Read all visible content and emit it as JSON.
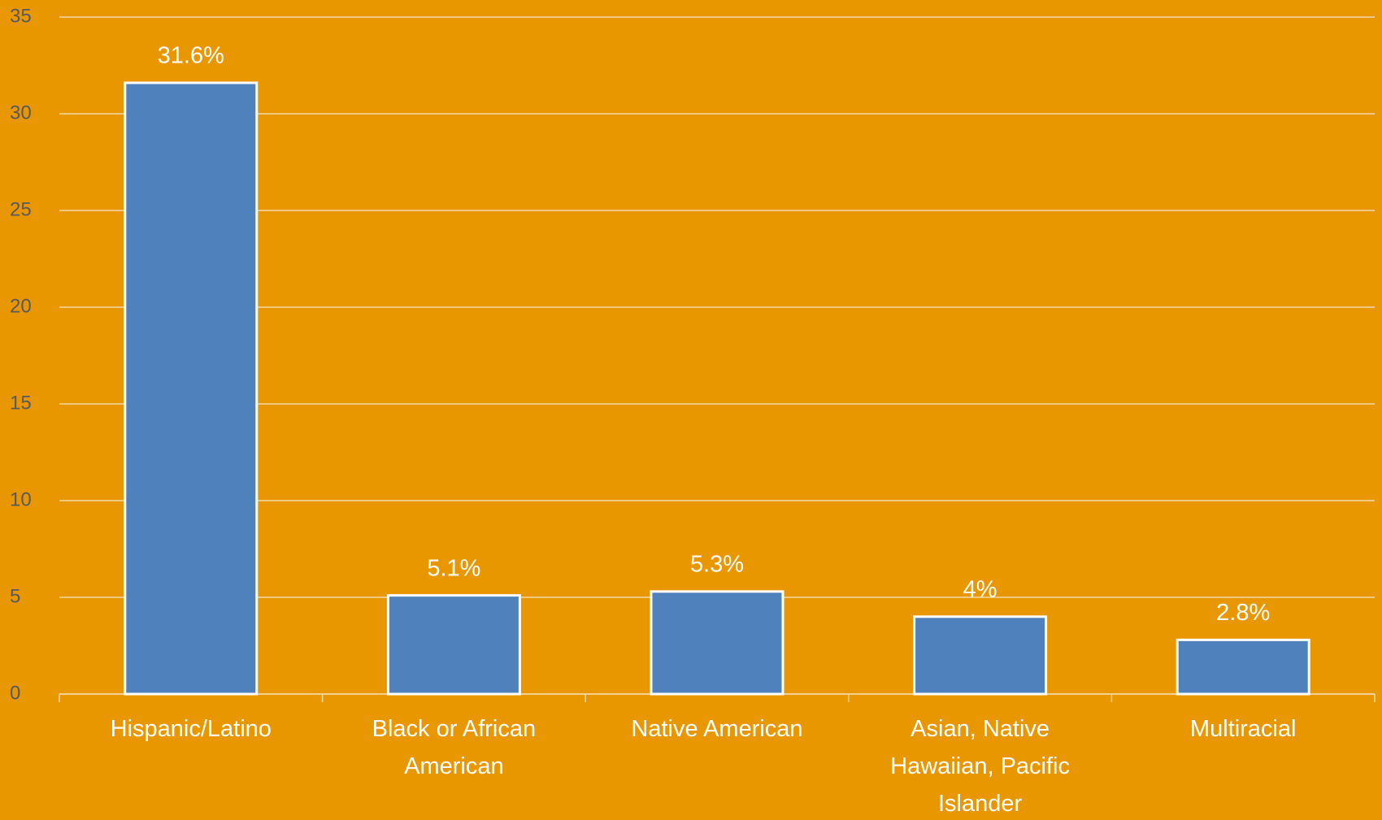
{
  "chart_data": {
    "type": "bar",
    "categories": [
      "Hispanic/Latino",
      "Black or African American",
      "Native American",
      "Asian, Native Hawaiian, Pacific Islander",
      "Multiracial"
    ],
    "values": [
      31.6,
      5.1,
      5.3,
      4,
      2.8
    ],
    "value_labels": [
      "31.6%",
      "5.1%",
      "5.3%",
      "4%",
      "2.8%"
    ],
    "color": "#4f81bd",
    "background": "#e99700",
    "ylim": [
      0,
      35
    ],
    "yticks": [
      0,
      5,
      10,
      15,
      20,
      25,
      30,
      35
    ],
    "grid": true
  }
}
